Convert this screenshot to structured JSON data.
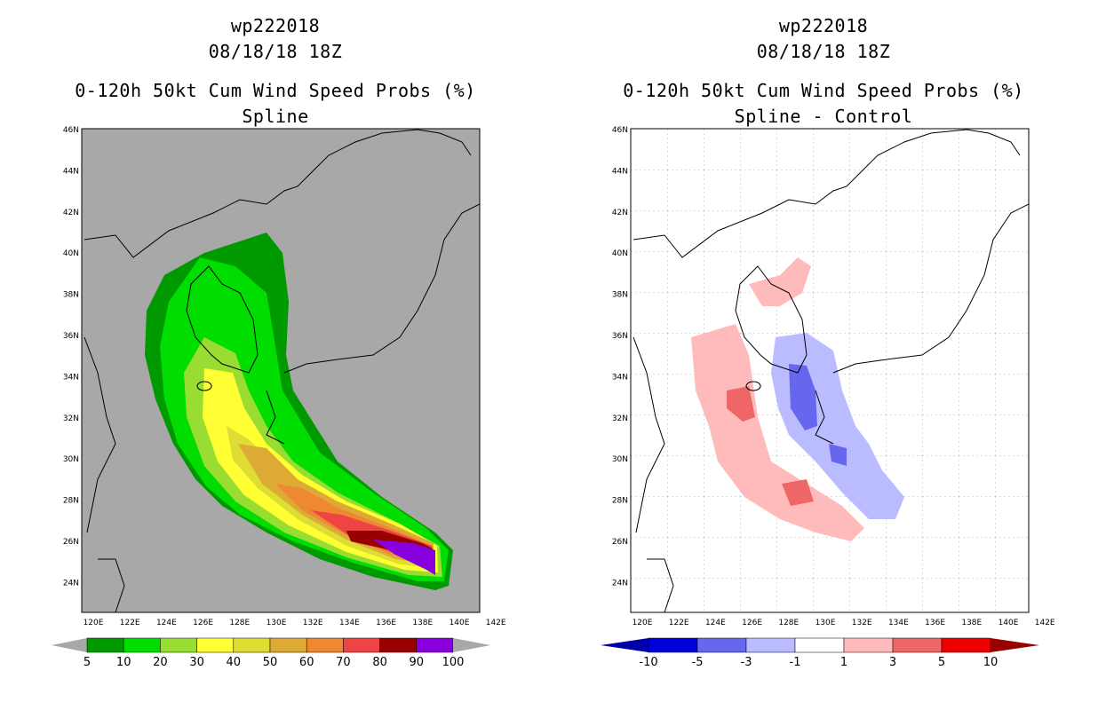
{
  "panels": [
    {
      "storm_id": "wp222018",
      "datetime": "08/18/18 18Z",
      "product": "0-120h 50kt Cum Wind Speed Probs (%)",
      "subtitle": "Spline",
      "colors": [
        "#009900",
        "#00dd00",
        "#99dd33",
        "#ffff33",
        "#dddd33",
        "#ddaa33",
        "#ee8833",
        "#ee4444",
        "#990000",
        "#8800dd"
      ],
      "legend_labels": [
        "5",
        "10",
        "20",
        "30",
        "40",
        "50",
        "60",
        "70",
        "80",
        "90",
        "100"
      ]
    },
    {
      "storm_id": "wp222018",
      "datetime": "08/18/18 18Z",
      "product": "0-120h 50kt Cum Wind Speed Probs (%)",
      "subtitle": "Spline - Control",
      "colors": [
        "#0000dd",
        "#6666ee",
        "#bbbbff",
        "#ffffff",
        "#ffbbbb",
        "#ee6666",
        "#ee0000"
      ],
      "legend_labels": [
        "-10",
        "-5",
        "-3",
        "-1",
        "1",
        "3",
        "5",
        "10"
      ]
    }
  ],
  "lat_labels": [
    "46N",
    "44N",
    "42N",
    "40N",
    "38N",
    "36N",
    "34N",
    "32N",
    "30N",
    "28N",
    "26N",
    "24N"
  ],
  "lon_labels": [
    "120E",
    "122E",
    "124E",
    "126E",
    "128E",
    "130E",
    "132E",
    "134E",
    "136E",
    "138E",
    "140E",
    "142E"
  ]
}
